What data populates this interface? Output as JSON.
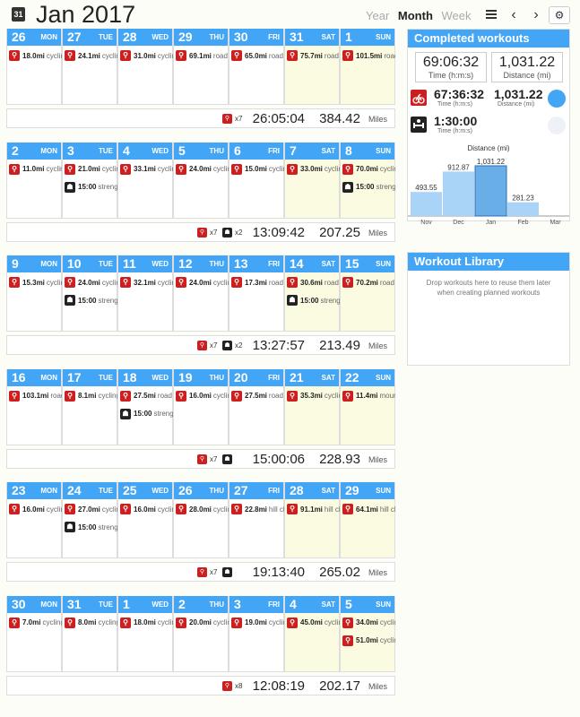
{
  "header": {
    "cal_icon": "31",
    "title": "Jan 2017",
    "views": [
      "Year",
      "Month",
      "Week"
    ],
    "active_view": "Month",
    "list_icon": "list-icon",
    "prev": "‹",
    "next": "›",
    "gear": "⚙"
  },
  "colors": {
    "accent": "#42a5f5",
    "cycling": "#cc1f1f",
    "strength": "#222222",
    "weekend": "#fbfbe2"
  },
  "weeks": [
    {
      "days": [
        {
          "num": "26",
          "name": "MON",
          "acts": [
            {
              "v": "18.0mi",
              "l": "cycling",
              "t": "red"
            }
          ]
        },
        {
          "num": "27",
          "name": "TUE",
          "acts": [
            {
              "v": "24.1mi",
              "l": "cycling",
              "t": "red"
            }
          ]
        },
        {
          "num": "28",
          "name": "WED",
          "acts": [
            {
              "v": "31.0mi",
              "l": "cycling",
              "t": "red"
            }
          ]
        },
        {
          "num": "29",
          "name": "THU",
          "acts": [
            {
              "v": "69.1mi",
              "l": "road",
              "t": "red"
            }
          ]
        },
        {
          "num": "30",
          "name": "FRI",
          "acts": [
            {
              "v": "65.0mi",
              "l": "road",
              "t": "red"
            }
          ]
        },
        {
          "num": "31",
          "name": "SAT",
          "acts": [
            {
              "v": "75.7mi",
              "l": "road",
              "t": "red"
            }
          ]
        },
        {
          "num": "1",
          "name": "SUN",
          "acts": [
            {
              "v": "101.5mi",
              "l": "road",
              "t": "red"
            }
          ]
        }
      ],
      "summary": {
        "counts": [
          {
            "t": "red",
            "c": "x7"
          }
        ],
        "time": "26:05:04",
        "dist": "384.42",
        "unit": "Miles"
      }
    },
    {
      "days": [
        {
          "num": "2",
          "name": "MON",
          "acts": [
            {
              "v": "11.0mi",
              "l": "cycling",
              "t": "red"
            }
          ]
        },
        {
          "num": "3",
          "name": "TUE",
          "acts": [
            {
              "v": "21.0mi",
              "l": "cycling",
              "t": "red"
            },
            {
              "v": "15:00",
              "l": "strength",
              "t": "black"
            }
          ]
        },
        {
          "num": "4",
          "name": "WED",
          "acts": [
            {
              "v": "33.1mi",
              "l": "cycling",
              "t": "red"
            }
          ]
        },
        {
          "num": "5",
          "name": "THU",
          "acts": [
            {
              "v": "24.0mi",
              "l": "cycling",
              "t": "red"
            }
          ]
        },
        {
          "num": "6",
          "name": "FRI",
          "acts": [
            {
              "v": "15.0mi",
              "l": "cycling",
              "t": "red"
            }
          ]
        },
        {
          "num": "7",
          "name": "SAT",
          "acts": [
            {
              "v": "33.0mi",
              "l": "cycling",
              "t": "red"
            }
          ]
        },
        {
          "num": "8",
          "name": "SUN",
          "acts": [
            {
              "v": "70.0mi",
              "l": "cycling",
              "t": "red"
            },
            {
              "v": "15:00",
              "l": "strength",
              "t": "black"
            }
          ]
        }
      ],
      "summary": {
        "counts": [
          {
            "t": "red",
            "c": "x7"
          },
          {
            "t": "black",
            "c": "x2"
          }
        ],
        "time": "13:09:42",
        "dist": "207.25",
        "unit": "Miles"
      }
    },
    {
      "days": [
        {
          "num": "9",
          "name": "MON",
          "acts": [
            {
              "v": "15.3mi",
              "l": "cycling",
              "t": "red"
            }
          ]
        },
        {
          "num": "10",
          "name": "TUE",
          "acts": [
            {
              "v": "24.0mi",
              "l": "cycling",
              "t": "red"
            },
            {
              "v": "15:00",
              "l": "strength",
              "t": "black"
            }
          ]
        },
        {
          "num": "11",
          "name": "WED",
          "acts": [
            {
              "v": "32.1mi",
              "l": "cycling",
              "t": "red"
            }
          ]
        },
        {
          "num": "12",
          "name": "THU",
          "acts": [
            {
              "v": "24.0mi",
              "l": "cycling",
              "t": "red"
            }
          ]
        },
        {
          "num": "13",
          "name": "FRI",
          "acts": [
            {
              "v": "17.3mi",
              "l": "road",
              "t": "red"
            }
          ]
        },
        {
          "num": "14",
          "name": "SAT",
          "acts": [
            {
              "v": "30.6mi",
              "l": "road",
              "t": "red"
            },
            {
              "v": "15:00",
              "l": "strength",
              "t": "black"
            }
          ]
        },
        {
          "num": "15",
          "name": "SUN",
          "acts": [
            {
              "v": "70.2mi",
              "l": "road",
              "t": "red"
            }
          ]
        }
      ],
      "summary": {
        "counts": [
          {
            "t": "red",
            "c": "x7"
          },
          {
            "t": "black",
            "c": "x2"
          }
        ],
        "time": "13:27:57",
        "dist": "213.49",
        "unit": "Miles"
      }
    },
    {
      "days": [
        {
          "num": "16",
          "name": "MON",
          "acts": [
            {
              "v": "103.1mi",
              "l": "road",
              "t": "red"
            }
          ]
        },
        {
          "num": "17",
          "name": "TUE",
          "acts": [
            {
              "v": "8.1mi",
              "l": "cycling",
              "t": "red"
            }
          ]
        },
        {
          "num": "18",
          "name": "WED",
          "acts": [
            {
              "v": "27.5mi",
              "l": "road",
              "t": "red"
            },
            {
              "v": "15:00",
              "l": "strength",
              "t": "black"
            }
          ]
        },
        {
          "num": "19",
          "name": "THU",
          "acts": [
            {
              "v": "16.0mi",
              "l": "cycling",
              "t": "red"
            }
          ]
        },
        {
          "num": "20",
          "name": "FRI",
          "acts": [
            {
              "v": "27.5mi",
              "l": "road",
              "t": "red"
            }
          ]
        },
        {
          "num": "21",
          "name": "SAT",
          "acts": [
            {
              "v": "35.3mi",
              "l": "cycling",
              "t": "red"
            }
          ]
        },
        {
          "num": "22",
          "name": "SUN",
          "acts": [
            {
              "v": "11.4mi",
              "l": "mountain",
              "t": "red"
            }
          ]
        }
      ],
      "summary": {
        "counts": [
          {
            "t": "red",
            "c": "x7"
          },
          {
            "t": "black",
            "c": ""
          }
        ],
        "time": "15:00:06",
        "dist": "228.93",
        "unit": "Miles"
      }
    },
    {
      "days": [
        {
          "num": "23",
          "name": "MON",
          "acts": [
            {
              "v": "16.0mi",
              "l": "cycling",
              "t": "red"
            }
          ]
        },
        {
          "num": "24",
          "name": "TUE",
          "acts": [
            {
              "v": "27.0mi",
              "l": "cycling",
              "t": "red"
            },
            {
              "v": "15:00",
              "l": "strength",
              "t": "black"
            }
          ]
        },
        {
          "num": "25",
          "name": "WED",
          "acts": [
            {
              "v": "16.0mi",
              "l": "cycling",
              "t": "red"
            }
          ]
        },
        {
          "num": "26",
          "name": "THU",
          "acts": [
            {
              "v": "28.0mi",
              "l": "cycling",
              "t": "red"
            }
          ]
        },
        {
          "num": "27",
          "name": "FRI",
          "acts": [
            {
              "v": "22.8mi",
              "l": "hill climb",
              "t": "red"
            }
          ]
        },
        {
          "num": "28",
          "name": "SAT",
          "acts": [
            {
              "v": "91.1mi",
              "l": "hill climb",
              "t": "red"
            }
          ]
        },
        {
          "num": "29",
          "name": "SUN",
          "acts": [
            {
              "v": "64.1mi",
              "l": "hill climb",
              "t": "red"
            }
          ]
        }
      ],
      "summary": {
        "counts": [
          {
            "t": "red",
            "c": "x7"
          },
          {
            "t": "black",
            "c": ""
          }
        ],
        "time": "19:13:40",
        "dist": "265.02",
        "unit": "Miles"
      }
    },
    {
      "days": [
        {
          "num": "30",
          "name": "MON",
          "acts": [
            {
              "v": "7.0mi",
              "l": "cycling",
              "t": "red"
            }
          ]
        },
        {
          "num": "31",
          "name": "TUE",
          "acts": [
            {
              "v": "8.0mi",
              "l": "cycling",
              "t": "red"
            }
          ]
        },
        {
          "num": "1",
          "name": "WED",
          "acts": [
            {
              "v": "18.0mi",
              "l": "cycling",
              "t": "red"
            }
          ]
        },
        {
          "num": "2",
          "name": "THU",
          "acts": [
            {
              "v": "20.0mi",
              "l": "cycling",
              "t": "red"
            }
          ]
        },
        {
          "num": "3",
          "name": "FRI",
          "acts": [
            {
              "v": "19.0mi",
              "l": "cycling",
              "t": "red"
            }
          ]
        },
        {
          "num": "4",
          "name": "SAT",
          "acts": [
            {
              "v": "45.0mi",
              "l": "cycling",
              "t": "red"
            }
          ]
        },
        {
          "num": "5",
          "name": "SUN",
          "acts": [
            {
              "v": "34.0mi",
              "l": "cycling",
              "t": "red"
            },
            {
              "v": "51.0mi",
              "l": "cycling",
              "t": "red"
            }
          ]
        }
      ],
      "summary": {
        "counts": [
          {
            "t": "red",
            "c": "x8"
          }
        ],
        "time": "12:08:19",
        "dist": "202.17",
        "unit": "Miles"
      }
    }
  ],
  "completed": {
    "title": "Completed workouts",
    "total_time": "69:06:32",
    "total_time_label": "Time (h:m:s)",
    "total_dist": "1,031.22",
    "total_dist_label": "Distance (mi)",
    "cycling": {
      "time": "67:36:32",
      "time_label": "Time (h:m:s)",
      "dist": "1,031.22",
      "dist_label": "Distance (mi)"
    },
    "strength": {
      "time": "1:30:00",
      "time_label": "Time (h:m:s)"
    }
  },
  "chart_data": {
    "type": "bar",
    "title": "Distance (mi)",
    "categories": [
      "Nov",
      "Dec",
      "Jan",
      "Feb",
      "Mar"
    ],
    "values": [
      493.55,
      912.87,
      1031.22,
      281.23,
      null
    ],
    "labels": [
      "493.55",
      "912.87",
      "1,031.22",
      "281.23",
      ""
    ],
    "highlight": "Jan",
    "ylim": [
      0,
      1031.22
    ]
  },
  "library": {
    "title": "Workout Library",
    "text": "Drop workouts here to reuse them later when creating planned workouts"
  }
}
